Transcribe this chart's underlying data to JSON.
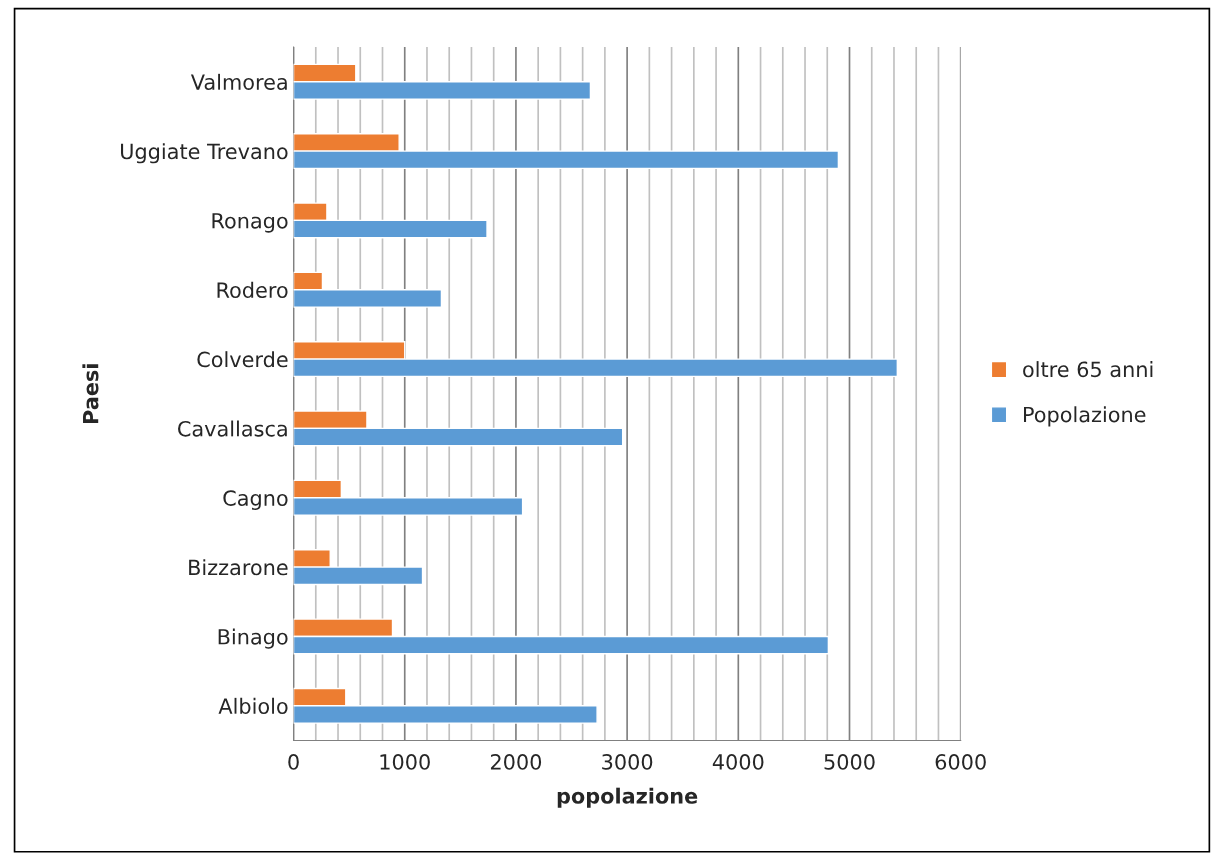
{
  "chart_data": {
    "type": "bar",
    "orientation": "horizontal",
    "xlabel": "popolazione",
    "ylabel": "Paesi",
    "categories": [
      "Valmorea",
      "Uggiate Trevano",
      "Ronago",
      "Rodero",
      "Colverde",
      "Cavallasca",
      "Cagno",
      "Bizzarone",
      "Binago",
      "Albiolo"
    ],
    "series": [
      {
        "name": "oltre 65 anni",
        "color": "#ed7d31",
        "values": [
          560,
          950,
          300,
          260,
          1000,
          660,
          430,
          330,
          890,
          470
        ]
      },
      {
        "name": "Popolazione",
        "color": "#5b9bd5",
        "values": [
          2670,
          4900,
          1740,
          1330,
          5430,
          2960,
          2060,
          1160,
          4810,
          2730
        ]
      }
    ],
    "xlim": [
      0,
      6000
    ],
    "xticks": [
      0,
      {
        "value": 200,
        "label": null
      },
      {
        "value": 400,
        "label": null
      },
      {
        "value": 600,
        "label": null
      },
      {
        "value": 800,
        "label": null
      },
      1000,
      {
        "value": 1200,
        "label": null
      },
      {
        "value": 1400,
        "label": null
      },
      {
        "value": 1600,
        "label": null
      },
      {
        "value": 1800,
        "label": null
      },
      2000,
      {
        "value": 2200,
        "label": null
      },
      {
        "value": 2400,
        "label": null
      },
      {
        "value": 2600,
        "label": null
      },
      {
        "value": 2800,
        "label": null
      },
      3000,
      {
        "value": 3200,
        "label": null
      },
      {
        "value": 3400,
        "label": null
      },
      {
        "value": 3600,
        "label": null
      },
      {
        "value": 3800,
        "label": null
      },
      4000,
      {
        "value": 4200,
        "label": null
      },
      {
        "value": 4400,
        "label": null
      },
      {
        "value": 4600,
        "label": null
      },
      {
        "value": 4800,
        "label": null
      },
      5000,
      {
        "value": 5200,
        "label": null
      },
      {
        "value": 5400,
        "label": null
      },
      {
        "value": 5600,
        "label": null
      },
      {
        "value": 5800,
        "label": null
      },
      6000
    ],
    "grid": "x",
    "legend": "right"
  }
}
